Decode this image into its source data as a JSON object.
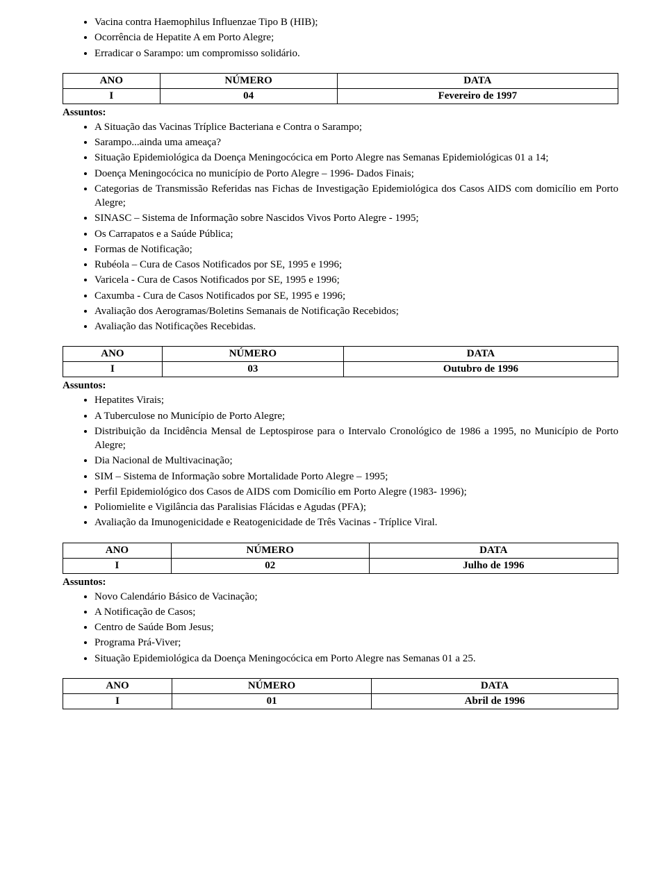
{
  "columns": {
    "ano": "ANO",
    "numero": "NÚMERO",
    "data": "DATA"
  },
  "assuntos_label": "Assuntos:",
  "top_bullets": [
    "Vacina contra Haemophilus Influenzae Tipo B (HIB);",
    "Ocorrência de Hepatite A em Porto Alegre;",
    "Erradicar o Sarampo: um compromisso solidário."
  ],
  "sections": [
    {
      "row": {
        "ano": "I",
        "numero": "04",
        "data": "Fevereiro de 1997"
      },
      "bullets": [
        {
          "text": "A Situação das Vacinas Tríplice Bacteriana e Contra o Sarampo;"
        },
        {
          "text": "Sarampo...ainda uma ameaça?"
        },
        {
          "text": "Situação Epidemiológica da Doença Meningocócica em Porto Alegre nas Semanas Epidemiológicas 01 a 14;",
          "wrap": true,
          "justify": true
        },
        {
          "text": "Doença Meningocócica no município de Porto Alegre – 1996- Dados Finais;"
        },
        {
          "text": "Categorias de Transmissão Referidas nas Fichas de Investigação Epidemiológica dos Casos AIDS com domicílio em Porto Alegre;",
          "wrap": true,
          "justify": true
        },
        {
          "text": "SINASC – Sistema de Informação sobre Nascidos Vivos Porto Alegre - 1995;"
        },
        {
          "text": "Os Carrapatos e a Saúde Pública;"
        },
        {
          "text": "Formas de Notificação;"
        },
        {
          "text": "Rubéola – Cura de Casos Notificados por SE, 1995 e 1996;"
        },
        {
          "text": "Varicela - Cura de Casos Notificados por SE, 1995 e 1996;"
        },
        {
          "text": "Caxumba - Cura de Casos Notificados por SE, 1995 e 1996;"
        },
        {
          "text": "Avaliação dos Aerogramas/Boletins Semanais de Notificação Recebidos;"
        },
        {
          "text": "Avaliação das Notificações Recebidas."
        }
      ]
    },
    {
      "row": {
        "ano": "I",
        "numero": "03",
        "data": "Outubro de 1996"
      },
      "bullets": [
        {
          "text": "Hepatites Virais;"
        },
        {
          "text": "A Tuberculose no Município de Porto Alegre;"
        },
        {
          "text": "Distribuição da Incidência Mensal de Leptospirose para o Intervalo Cronológico de 1986 a 1995, no Município de Porto Alegre;",
          "wrap": true,
          "justify": true
        },
        {
          "text": "Dia Nacional de Multivacinação;"
        },
        {
          "text": "SIM – Sistema de Informação sobre Mortalidade Porto Alegre – 1995;"
        },
        {
          "text": "Perfil Epidemiológico dos Casos de AIDS com Domicílio em Porto Alegre (1983- 1996);"
        },
        {
          "text": "Poliomielite e Vigilância das Paralisias Flácidas e Agudas (PFA);"
        },
        {
          "text": "Avaliação da Imunogenicidade e Reatogenicidade de Três Vacinas - Tríplice Viral."
        }
      ]
    },
    {
      "row": {
        "ano": "I",
        "numero": "02",
        "data": "Julho de 1996"
      },
      "bullets": [
        {
          "text": "Novo Calendário Básico de Vacinação;"
        },
        {
          "text": "A Notificação de Casos;"
        },
        {
          "text": "Centro de Saúde Bom Jesus;"
        },
        {
          "text": "Programa Prá-Viver;"
        },
        {
          "text": "Situação Epidemiológica da Doença Meningocócica em Porto Alegre nas Semanas 01 a 25."
        }
      ]
    },
    {
      "row": {
        "ano": "I",
        "numero": "01",
        "data": "Abril de 1996"
      },
      "bullets": []
    }
  ]
}
